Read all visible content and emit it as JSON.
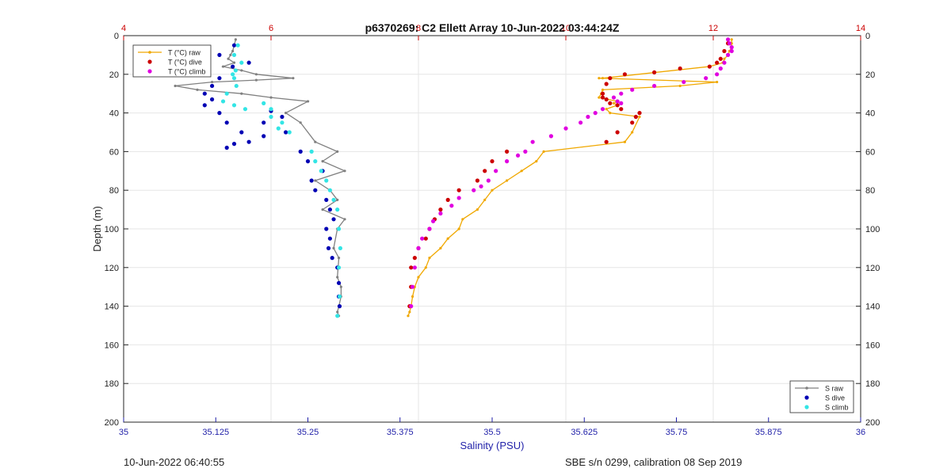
{
  "chart_data": {
    "type": "scatter",
    "title": "p6370269: C2 Ellett Array 10-Jun-2022 03:44:24Z",
    "xlabel": "Salinity (PSU)",
    "ylabel": "Depth (m)",
    "x_bottom_lim": [
      35,
      36
    ],
    "x_bottom_ticks": [
      "35",
      "35.125",
      "35.25",
      "35.375",
      "35.5",
      "35.625",
      "35.75",
      "35.875",
      "36"
    ],
    "x_top_lim": [
      4,
      14
    ],
    "x_top_ticks": [
      "4",
      "6",
      "8",
      "10",
      "12",
      "14"
    ],
    "ylim": [
      0,
      200
    ],
    "y_ticks": [
      "0",
      "20",
      "40",
      "60",
      "80",
      "100",
      "120",
      "140",
      "160",
      "180",
      "200"
    ],
    "y_reversed": true,
    "grid": true,
    "colors": {
      "bottom_axis": "#1f1fa8",
      "top_axis": "#cc0000",
      "S_raw": "#808080",
      "S_dive": "#0000b4",
      "S_climb": "#33e5e5",
      "T_raw": "#f0a800",
      "T_dive": "#cc0000",
      "T_climb": "#e000e0"
    },
    "legends": [
      {
        "placement": "top-left",
        "entries": [
          "T (°C) raw",
          "T (°C) dive",
          "T (°C) climb"
        ]
      },
      {
        "placement": "bottom-right",
        "entries": [
          "S raw",
          "S dive",
          "S climb"
        ]
      }
    ],
    "salinity_series": [
      {
        "name": "S raw",
        "style": "line",
        "x": [
          35.152,
          35.15,
          35.148,
          35.145,
          35.142,
          35.15,
          35.135,
          35.16,
          35.18,
          35.23,
          35.18,
          35.12,
          35.07,
          35.1,
          35.16,
          35.2,
          35.25,
          35.22,
          35.24,
          35.26,
          35.29,
          35.27,
          35.3,
          35.26,
          35.28,
          35.29,
          35.27,
          35.3,
          35.29,
          35.285,
          35.292,
          35.29,
          35.295,
          35.295,
          35.292,
          35.29,
          35.292
        ],
        "y": [
          2,
          5,
          8,
          10,
          12,
          14,
          16,
          18,
          20,
          22,
          23,
          24,
          26,
          28,
          30,
          32,
          34,
          40,
          45,
          55,
          60,
          65,
          70,
          75,
          80,
          85,
          90,
          95,
          100,
          110,
          115,
          125,
          130,
          135,
          140,
          143,
          145
        ]
      },
      {
        "name": "S dive",
        "style": "marker",
        "x": [
          35.15,
          35.13,
          35.17,
          35.148,
          35.11,
          35.13,
          35.12,
          35.11,
          35.12,
          35.11,
          35.13,
          35.14,
          35.16,
          35.19,
          35.17,
          35.15,
          35.14,
          35.2,
          35.215,
          35.19,
          35.22,
          35.24,
          35.25,
          35.27,
          35.255,
          35.26,
          35.275,
          35.28,
          35.285,
          35.275,
          35.28,
          35.278,
          35.283,
          35.29,
          35.292,
          35.292,
          35.293
        ],
        "y": [
          5,
          10,
          14,
          16,
          18,
          22,
          26,
          30,
          33,
          36,
          40,
          45,
          50,
          52,
          55,
          56,
          58,
          39,
          42,
          45,
          50,
          60,
          65,
          70,
          75,
          80,
          85,
          90,
          95,
          100,
          105,
          110,
          115,
          120,
          128,
          135,
          140
        ]
      },
      {
        "name": "S climb",
        "style": "marker",
        "x": [
          35.155,
          35.15,
          35.16,
          35.152,
          35.148,
          35.15,
          35.153,
          35.14,
          35.135,
          35.15,
          35.165,
          35.19,
          35.2,
          35.2,
          35.21,
          35.215,
          35.225,
          35.255,
          35.26,
          35.268,
          35.275,
          35.28,
          35.285,
          35.29,
          35.292,
          35.294,
          35.292,
          35.293,
          35.29
        ],
        "y": [
          5,
          10,
          14,
          18,
          20,
          22,
          26,
          30,
          34,
          36,
          38,
          35,
          38,
          42,
          48,
          45,
          50,
          60,
          65,
          70,
          75,
          80,
          85,
          90,
          100,
          110,
          120,
          135,
          145
        ]
      }
    ],
    "temperature_series": [
      {
        "name": "T (°C) raw",
        "style": "line",
        "x": [
          12.25,
          12.25,
          12.25,
          12.22,
          12.2,
          12.15,
          12.13,
          11.95,
          10.5,
          10.45,
          12.05,
          11.55,
          10.5,
          10.48,
          10.45,
          10.7,
          10.65,
          10.7,
          10.55,
          10.6,
          11.0,
          10.9,
          10.8,
          9.7,
          9.6,
          9.4,
          9.2,
          9.0,
          8.9,
          8.8,
          8.6,
          8.55,
          8.4,
          8.3,
          8.15,
          8.1,
          8.0,
          7.95,
          7.92,
          7.9,
          7.88,
          7.86
        ],
        "y": [
          2,
          4,
          6,
          8,
          10,
          12,
          14,
          16,
          22,
          22,
          24,
          26,
          28,
          30,
          32,
          34,
          35,
          36,
          38,
          40,
          42,
          50,
          55,
          60,
          65,
          70,
          75,
          80,
          85,
          90,
          95,
          100,
          105,
          110,
          115,
          120,
          125,
          130,
          135,
          140,
          143,
          145
        ]
      },
      {
        "name": "T (°C) dive",
        "style": "marker",
        "x": [
          12.2,
          12.15,
          12.1,
          12.05,
          11.95,
          11.55,
          11.2,
          10.8,
          10.6,
          10.55,
          10.5,
          10.5,
          10.55,
          10.6,
          10.7,
          10.75,
          11.0,
          10.95,
          10.9,
          10.7,
          10.55,
          9.2,
          9.0,
          8.9,
          8.8,
          8.55,
          8.4,
          8.3,
          8.22,
          8.15,
          8.1,
          8.0,
          7.95,
          7.9,
          7.9,
          7.88
        ],
        "y": [
          4,
          8,
          12,
          14,
          16,
          17,
          19,
          20,
          22,
          25,
          30,
          32,
          33,
          35,
          36,
          38,
          40,
          42,
          45,
          50,
          55,
          60,
          65,
          70,
          75,
          80,
          85,
          90,
          95,
          100,
          105,
          110,
          115,
          120,
          130,
          140
        ]
      },
      {
        "name": "T (°C) climb",
        "style": "marker",
        "x": [
          12.2,
          12.22,
          12.25,
          12.25,
          12.2,
          12.15,
          12.1,
          12.05,
          11.9,
          11.6,
          11.2,
          10.9,
          10.75,
          10.65,
          10.7,
          10.75,
          10.5,
          10.4,
          10.3,
          10.2,
          10.0,
          9.8,
          9.55,
          9.45,
          9.35,
          9.2,
          9.05,
          8.95,
          8.85,
          8.75,
          8.55,
          8.45,
          8.3,
          8.2,
          8.15,
          8.05,
          8.0,
          7.95,
          7.92,
          7.9
        ],
        "y": [
          2,
          4,
          6,
          8,
          10,
          14,
          17,
          20,
          22,
          24,
          26,
          28,
          30,
          32,
          34,
          35,
          38,
          40,
          42,
          45,
          48,
          52,
          55,
          60,
          62,
          65,
          70,
          75,
          78,
          80,
          84,
          88,
          92,
          96,
          100,
          105,
          110,
          120,
          130,
          140
        ]
      }
    ]
  },
  "footer": {
    "left_text": "10-Jun-2022 06:40:55",
    "right_text": "SBE s/n 0299, calibration 08 Sep 2019"
  }
}
